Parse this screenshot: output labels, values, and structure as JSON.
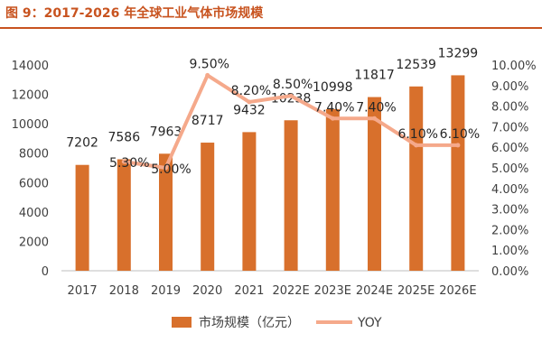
{
  "header": {
    "title": "图 9：2017-2026 年全球工业气体市场规模"
  },
  "colors": {
    "bar": "#d8702c",
    "line": "#f5a98b",
    "title": "#c8531f"
  },
  "chart_data": {
    "type": "bar",
    "title": "图 9：2017-2026 年全球工业气体市场规模",
    "categories": [
      "2017",
      "2018",
      "2019",
      "2020",
      "2021",
      "2022E",
      "2023E",
      "2024E",
      "2025E",
      "2026E"
    ],
    "series": [
      {
        "name": "市场规模（亿元）",
        "type": "bar",
        "axis": "left",
        "values": [
          7202,
          7586,
          7963,
          8717,
          9432,
          10238,
          10998,
          11817,
          12539,
          13299
        ],
        "labels": [
          "7202",
          "7586",
          "7963",
          "8717",
          "9432",
          "10238",
          "10998",
          "11817",
          "12539",
          "13299"
        ]
      },
      {
        "name": "YOY",
        "type": "line",
        "axis": "right",
        "values": [
          null,
          5.3,
          5.0,
          9.5,
          8.2,
          8.5,
          7.4,
          7.4,
          6.1,
          6.1
        ],
        "labels": [
          "",
          "5.30%",
          "5.00%",
          "9.50%",
          "8.20%",
          "8.50%",
          "7.40%",
          "7.40%",
          "6.10%",
          "6.10%"
        ]
      }
    ],
    "y_left": {
      "min": 0,
      "max": 14000,
      "ticks": [
        "0",
        "2000",
        "4000",
        "6000",
        "8000",
        "10000",
        "12000",
        "14000"
      ]
    },
    "y_right": {
      "min": 0,
      "max": 10,
      "ticks": [
        "0.00%",
        "1.00%",
        "2.00%",
        "3.00%",
        "4.00%",
        "5.00%",
        "6.00%",
        "7.00%",
        "8.00%",
        "9.00%",
        "10.00%"
      ]
    },
    "grid": false,
    "legend": {
      "position": "bottom",
      "entries": [
        "市场规模（亿元）",
        "YOY"
      ]
    }
  }
}
